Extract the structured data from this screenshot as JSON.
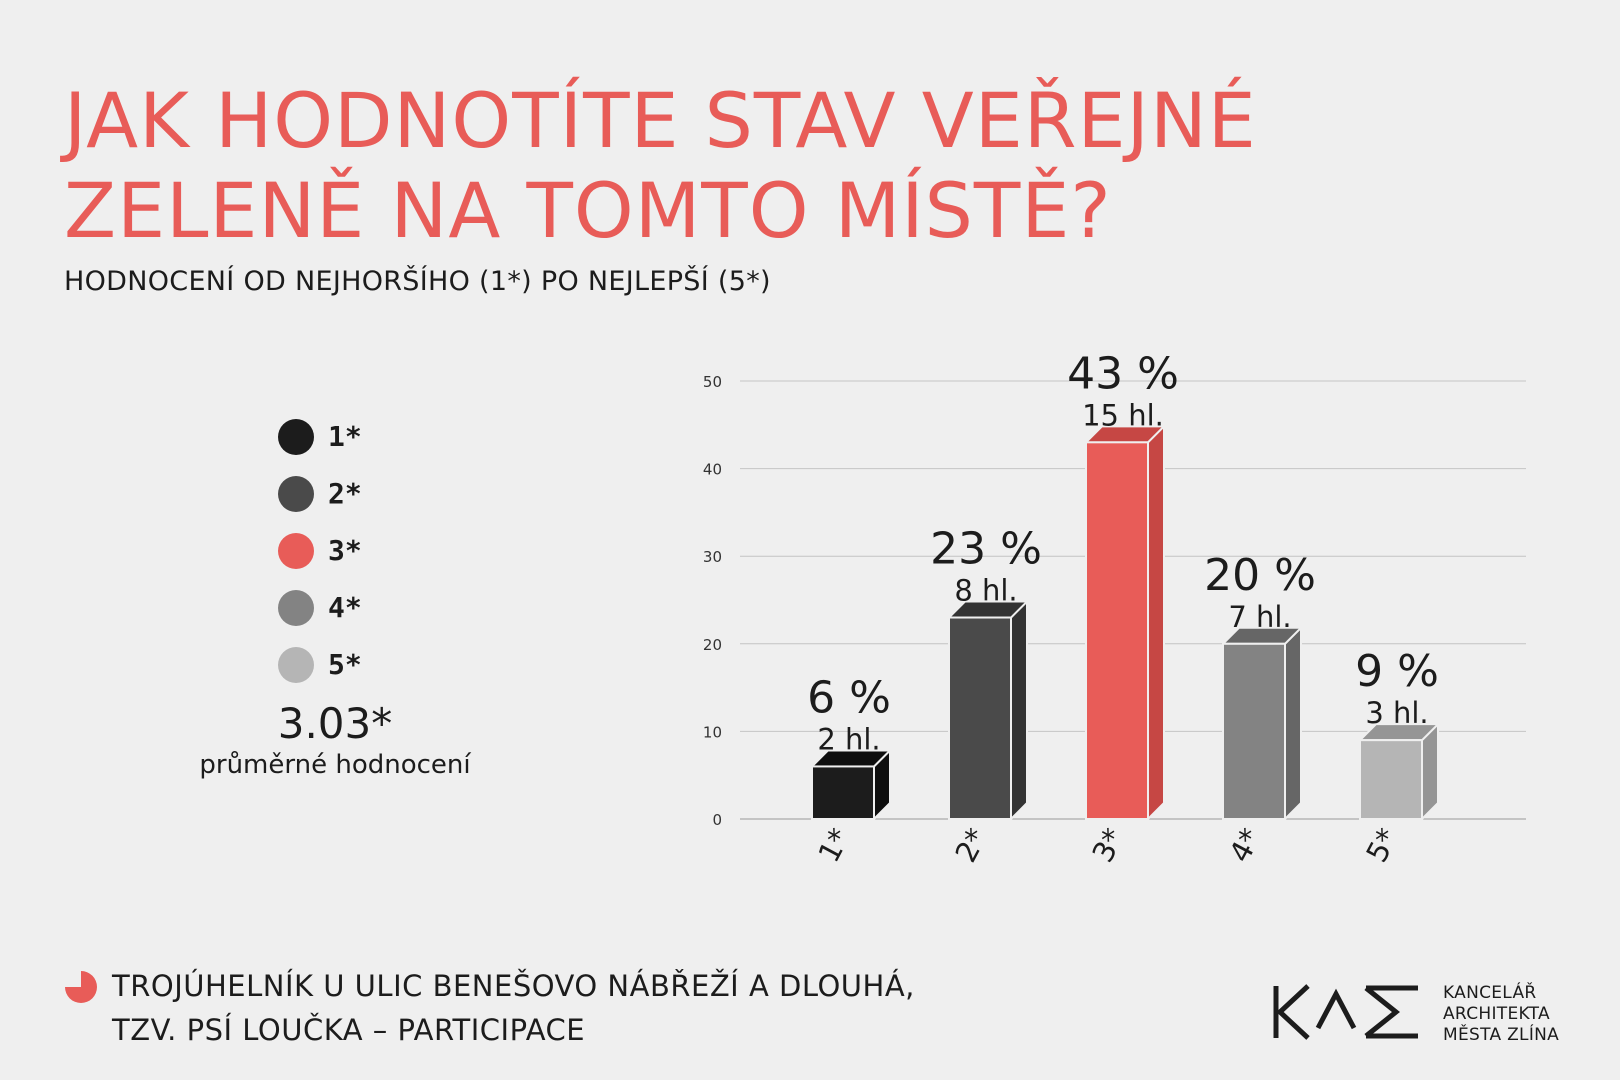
{
  "header": {
    "title_line1": "JAK HODNOTÍTE STAV VEŘEJNÉ",
    "title_line2": "ZELENĚ NA TOMTO MÍSTĚ?",
    "subtitle": "HODNOCENÍ OD NEJHORŠÍHO (1*) PO NEJLEPŠÍ (5*)"
  },
  "legend": [
    {
      "label": "1*",
      "color": "#1c1c1c"
    },
    {
      "label": "2*",
      "color": "#4a4a4a"
    },
    {
      "label": "3*",
      "color": "#e85c58"
    },
    {
      "label": "4*",
      "color": "#838383"
    },
    {
      "label": "5*",
      "color": "#b5b5b5"
    }
  ],
  "average": {
    "value": "3.03*",
    "label": "průměrné hodnocení"
  },
  "chart_data": {
    "type": "bar",
    "categories": [
      "1*",
      "2*",
      "3*",
      "4*",
      "5*"
    ],
    "values": [
      6,
      23,
      43,
      20,
      9
    ],
    "percent_labels": [
      "6 %",
      "23 %",
      "43 %",
      "20 %",
      "9 %"
    ],
    "vote_labels": [
      "2 hl.",
      "8 hl.",
      "15 hl.",
      "7 hl.",
      "3 hl."
    ],
    "colors": [
      "#1c1c1c",
      "#4a4a4a",
      "#e85c58",
      "#838383",
      "#b5b5b5"
    ],
    "side_colors": [
      "#0e0e0e",
      "#333333",
      "#c64744",
      "#666666",
      "#959595"
    ],
    "yticks": [
      "0",
      "10",
      "20",
      "30",
      "40",
      "50"
    ],
    "ylim": [
      0,
      50
    ],
    "grid": true
  },
  "footer": {
    "line1": "TROJÚHELNÍK U ULIC BENEŠOVO NÁBŘEŽÍ A DLOUHÁ,",
    "line2": "TZV. PSÍ LOUČKA – PARTICIPACE",
    "icon_color": "#e85c58"
  },
  "logo": {
    "line1": "KANCELÁŘ",
    "line2": "ARCHITEKTA",
    "line3": "MĚSTA ZLÍNA"
  }
}
